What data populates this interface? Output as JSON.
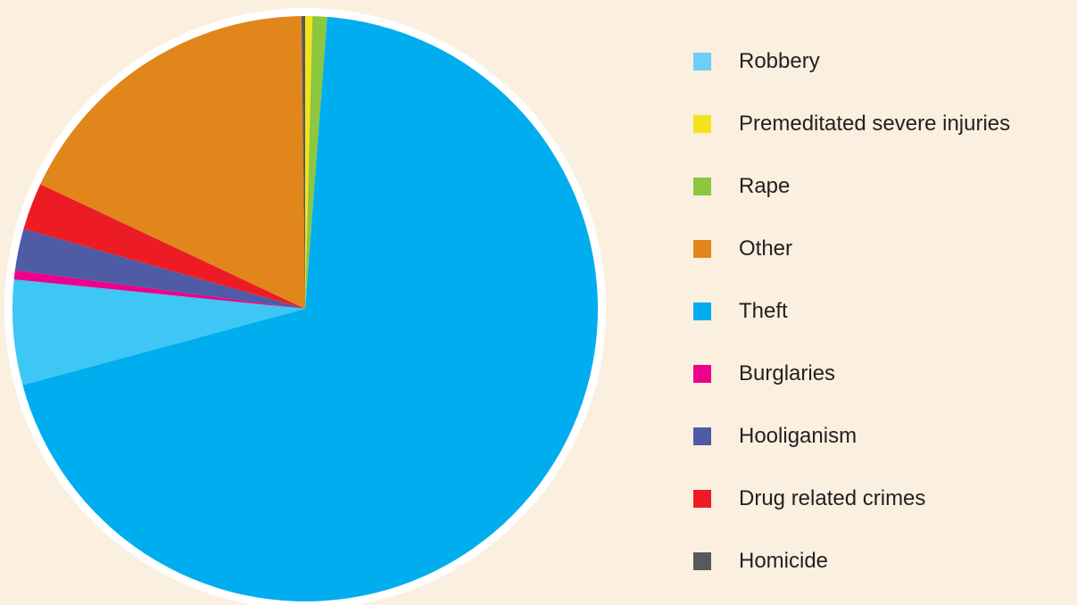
{
  "chart_data": {
    "type": "pie",
    "title": "",
    "start_angle_deg": -90,
    "direction": "clockwise",
    "legend_position": "right",
    "slices": [
      {
        "label": "Premeditated severe injuries",
        "value": 0.4,
        "color": "#f2e31c"
      },
      {
        "label": "Rape",
        "value": 0.8,
        "color": "#8dc63f"
      },
      {
        "label": "Theft",
        "value": 69.6,
        "color": "#00adee"
      },
      {
        "label": "Robbery",
        "value": 5.8,
        "color": "#3ec6f4"
      },
      {
        "label": "Burglaries",
        "value": 0.5,
        "color": "#ec008c"
      },
      {
        "label": "Hooliganism",
        "value": 2.3,
        "color": "#4f5ba5"
      },
      {
        "label": "Drug related crimes",
        "value": 2.6,
        "color": "#ed1c24"
      },
      {
        "label": "Other",
        "value": 17.8,
        "color": "#e0861b"
      },
      {
        "label": "Homicide",
        "value": 0.2,
        "color": "#58595b"
      }
    ],
    "legend": [
      {
        "label": "Robbery",
        "color": "#6dcff6"
      },
      {
        "label": "Premeditated severe injuries",
        "color": "#f2e31c"
      },
      {
        "label": "Rape",
        "color": "#8dc63f"
      },
      {
        "label": "Other",
        "color": "#e0861b"
      },
      {
        "label": "Theft",
        "color": "#00adee"
      },
      {
        "label": "Burglaries",
        "color": "#ec008c"
      },
      {
        "label": "Hooliganism",
        "color": "#4f5ba5"
      },
      {
        "label": "Drug related crimes",
        "color": "#ed1c24"
      },
      {
        "label": "Homicide",
        "color": "#58595b"
      }
    ]
  }
}
